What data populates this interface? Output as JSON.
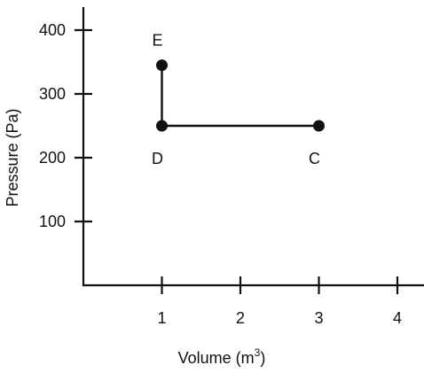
{
  "chart_data": {
    "type": "line",
    "title": "",
    "xlabel": "Volume (m",
    "xlabel_sup": "3",
    "xlabel_end": ")",
    "ylabel": "Pressure (Pa)",
    "xlim": [
      0,
      4.25
    ],
    "ylim": [
      0,
      440
    ],
    "x_ticks": [
      1,
      2,
      3,
      4
    ],
    "y_ticks": [
      100,
      200,
      300,
      400
    ],
    "x_tick_labels": [
      "1",
      "2",
      "3",
      "4"
    ],
    "y_tick_labels": [
      "100",
      "200",
      "300",
      "400"
    ],
    "grid": false,
    "points": [
      {
        "label": "E",
        "x": 1,
        "y": 345,
        "label_position": "above"
      },
      {
        "label": "D",
        "x": 1,
        "y": 250,
        "label_position": "below"
      },
      {
        "label": "C",
        "x": 3,
        "y": 250,
        "label_position": "below"
      }
    ],
    "segments": [
      [
        "E",
        "D"
      ],
      [
        "D",
        "C"
      ]
    ],
    "colors": {
      "ink": "#111111",
      "background": "#ffffff"
    }
  }
}
